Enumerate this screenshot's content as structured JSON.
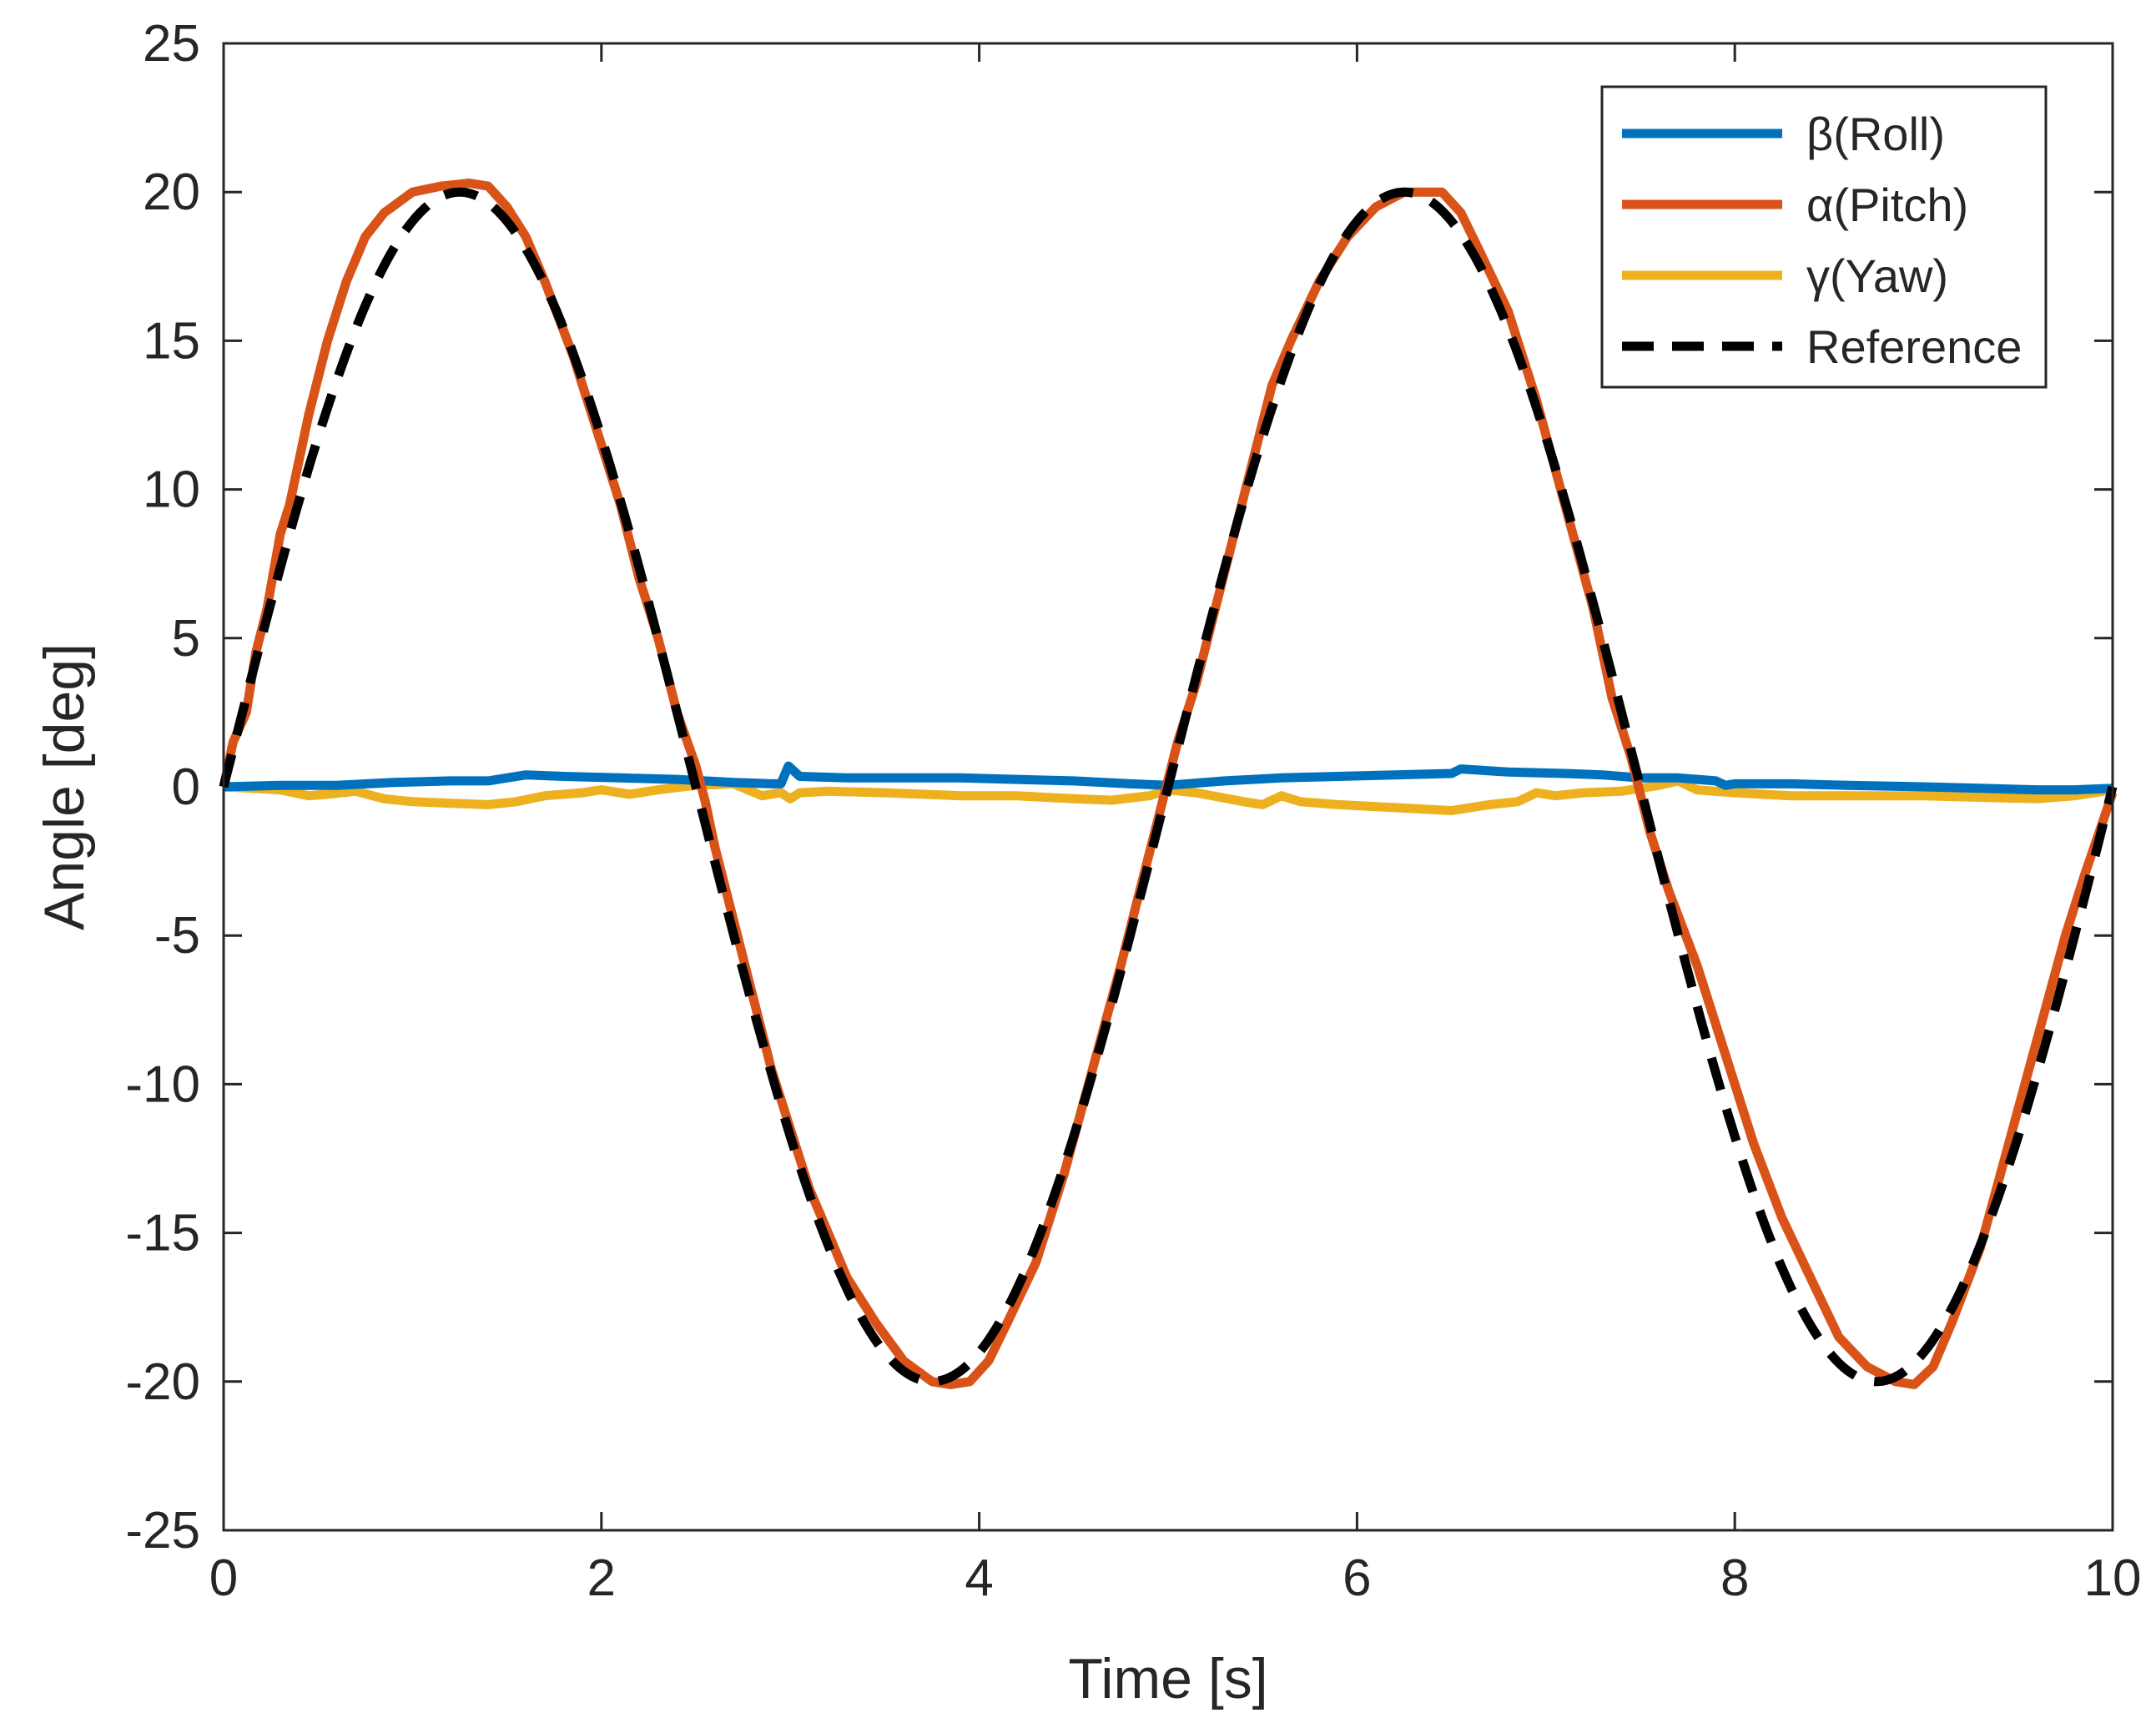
{
  "chart_data": {
    "type": "line",
    "title": "",
    "xlabel": "Time [s]",
    "ylabel": "Angle [deg]",
    "xlim": [
      0,
      10
    ],
    "ylim": [
      -25,
      25
    ],
    "xticks": [
      0,
      2,
      4,
      6,
      8,
      10
    ],
    "yticks": [
      -25,
      -20,
      -15,
      -10,
      -5,
      0,
      5,
      10,
      15,
      20,
      25
    ],
    "grid": false,
    "legend_position": "top-right",
    "series": [
      {
        "name": "β(Roll)",
        "color": "#0072BD",
        "style": "solid",
        "points": [
          [
            0,
            0
          ],
          [
            0.3,
            0.05
          ],
          [
            0.6,
            0.05
          ],
          [
            0.9,
            0.15
          ],
          [
            1.2,
            0.2
          ],
          [
            1.4,
            0.2
          ],
          [
            1.5,
            0.3
          ],
          [
            1.6,
            0.4
          ],
          [
            1.8,
            0.35
          ],
          [
            2.1,
            0.3
          ],
          [
            2.4,
            0.25
          ],
          [
            2.7,
            0.15
          ],
          [
            2.9,
            0.1
          ],
          [
            2.95,
            0.1
          ],
          [
            2.99,
            0.7
          ],
          [
            3.05,
            0.35
          ],
          [
            3.3,
            0.3
          ],
          [
            3.6,
            0.3
          ],
          [
            3.9,
            0.3
          ],
          [
            4.2,
            0.25
          ],
          [
            4.5,
            0.2
          ],
          [
            4.8,
            0.1
          ],
          [
            5.0,
            0.05
          ],
          [
            5.3,
            0.2
          ],
          [
            5.6,
            0.3
          ],
          [
            5.9,
            0.35
          ],
          [
            6.2,
            0.4
          ],
          [
            6.5,
            0.45
          ],
          [
            6.55,
            0.6
          ],
          [
            6.8,
            0.5
          ],
          [
            7.1,
            0.45
          ],
          [
            7.3,
            0.4
          ],
          [
            7.5,
            0.3
          ],
          [
            7.7,
            0.3
          ],
          [
            7.9,
            0.2
          ],
          [
            7.95,
            0.05
          ],
          [
            8.0,
            0.1
          ],
          [
            8.3,
            0.1
          ],
          [
            8.6,
            0.05
          ],
          [
            9.0,
            0
          ],
          [
            9.3,
            -0.05
          ],
          [
            9.6,
            -0.1
          ],
          [
            9.8,
            -0.1
          ],
          [
            10.0,
            -0.05
          ]
        ]
      },
      {
        "name": "α(Pitch)",
        "color": "#D95319",
        "style": "solid",
        "points": [
          [
            0,
            0
          ],
          [
            0.05,
            1.5
          ],
          [
            0.12,
            2.5
          ],
          [
            0.17,
            4.5
          ],
          [
            0.23,
            6.0
          ],
          [
            0.3,
            8.5
          ],
          [
            0.35,
            9.5
          ],
          [
            0.45,
            12.5
          ],
          [
            0.55,
            15.0
          ],
          [
            0.65,
            17.0
          ],
          [
            0.75,
            18.5
          ],
          [
            0.85,
            19.3
          ],
          [
            1.0,
            20.0
          ],
          [
            1.15,
            20.2
          ],
          [
            1.3,
            20.3
          ],
          [
            1.4,
            20.2
          ],
          [
            1.5,
            19.5
          ],
          [
            1.6,
            18.5
          ],
          [
            1.7,
            17.0
          ],
          [
            1.85,
            14.5
          ],
          [
            2.0,
            11.5
          ],
          [
            2.1,
            9.5
          ],
          [
            2.2,
            7.0
          ],
          [
            2.3,
            5.0
          ],
          [
            2.4,
            2.5
          ],
          [
            2.5,
            0.7
          ],
          [
            2.55,
            -0.5
          ],
          [
            2.6,
            -2.0
          ],
          [
            2.7,
            -4.5
          ],
          [
            2.8,
            -7.0
          ],
          [
            2.9,
            -9.5
          ],
          [
            3.0,
            -11.5
          ],
          [
            3.1,
            -13.5
          ],
          [
            3.2,
            -15.0
          ],
          [
            3.3,
            -16.5
          ],
          [
            3.45,
            -18.0
          ],
          [
            3.6,
            -19.3
          ],
          [
            3.75,
            -20.0
          ],
          [
            3.85,
            -20.1
          ],
          [
            3.95,
            -20.0
          ],
          [
            4.05,
            -19.3
          ],
          [
            4.15,
            -18.0
          ],
          [
            4.3,
            -16.0
          ],
          [
            4.45,
            -13.0
          ],
          [
            4.6,
            -9.5
          ],
          [
            4.75,
            -6.0
          ],
          [
            4.85,
            -3.5
          ],
          [
            4.95,
            -1.0
          ],
          [
            5.05,
            1.5
          ],
          [
            5.15,
            3.5
          ],
          [
            5.25,
            6.0
          ],
          [
            5.35,
            8.5
          ],
          [
            5.45,
            11.0
          ],
          [
            5.55,
            13.5
          ],
          [
            5.65,
            15.0
          ],
          [
            5.8,
            17.0
          ],
          [
            5.95,
            18.5
          ],
          [
            6.1,
            19.5
          ],
          [
            6.25,
            20.0
          ],
          [
            6.45,
            20.0
          ],
          [
            6.55,
            19.3
          ],
          [
            6.65,
            18.0
          ],
          [
            6.8,
            16.0
          ],
          [
            6.95,
            13.0
          ],
          [
            7.1,
            9.5
          ],
          [
            7.25,
            6.0
          ],
          [
            7.35,
            3.0
          ],
          [
            7.45,
            1.0
          ],
          [
            7.55,
            -1.5
          ],
          [
            7.65,
            -3.5
          ],
          [
            7.8,
            -6.0
          ],
          [
            7.95,
            -9.0
          ],
          [
            8.1,
            -12.0
          ],
          [
            8.25,
            -14.5
          ],
          [
            8.4,
            -16.5
          ],
          [
            8.55,
            -18.5
          ],
          [
            8.7,
            -19.5
          ],
          [
            8.85,
            -20.0
          ],
          [
            8.95,
            -20.1
          ],
          [
            9.05,
            -19.5
          ],
          [
            9.15,
            -18.0
          ],
          [
            9.3,
            -15.5
          ],
          [
            9.45,
            -12.0
          ],
          [
            9.6,
            -8.5
          ],
          [
            9.75,
            -5.0
          ],
          [
            9.85,
            -3.0
          ],
          [
            10.0,
            -0.2
          ]
        ]
      },
      {
        "name": "γ(Yaw)",
        "color": "#EDB120",
        "style": "solid",
        "points": [
          [
            0,
            0
          ],
          [
            0.15,
            -0.05
          ],
          [
            0.3,
            -0.1
          ],
          [
            0.45,
            -0.3
          ],
          [
            0.55,
            -0.25
          ],
          [
            0.7,
            -0.15
          ],
          [
            0.85,
            -0.4
          ],
          [
            1.0,
            -0.5
          ],
          [
            1.2,
            -0.55
          ],
          [
            1.4,
            -0.6
          ],
          [
            1.55,
            -0.5
          ],
          [
            1.7,
            -0.3
          ],
          [
            1.9,
            -0.2
          ],
          [
            2.0,
            -0.1
          ],
          [
            2.15,
            -0.25
          ],
          [
            2.3,
            -0.1
          ],
          [
            2.5,
            0.05
          ],
          [
            2.7,
            0.1
          ],
          [
            2.85,
            -0.3
          ],
          [
            2.95,
            -0.2
          ],
          [
            3.0,
            -0.4
          ],
          [
            3.05,
            -0.2
          ],
          [
            3.2,
            -0.15
          ],
          [
            3.5,
            -0.2
          ],
          [
            3.9,
            -0.3
          ],
          [
            4.2,
            -0.3
          ],
          [
            4.5,
            -0.4
          ],
          [
            4.7,
            -0.45
          ],
          [
            4.9,
            -0.3
          ],
          [
            5.0,
            -0.1
          ],
          [
            5.15,
            -0.2
          ],
          [
            5.4,
            -0.5
          ],
          [
            5.5,
            -0.6
          ],
          [
            5.6,
            -0.3
          ],
          [
            5.7,
            -0.5
          ],
          [
            5.9,
            -0.6
          ],
          [
            6.2,
            -0.7
          ],
          [
            6.5,
            -0.8
          ],
          [
            6.7,
            -0.6
          ],
          [
            6.85,
            -0.5
          ],
          [
            6.95,
            -0.2
          ],
          [
            7.05,
            -0.3
          ],
          [
            7.2,
            -0.2
          ],
          [
            7.4,
            -0.15
          ],
          [
            7.6,
            0.05
          ],
          [
            7.7,
            0.2
          ],
          [
            7.8,
            -0.1
          ],
          [
            8.0,
            -0.2
          ],
          [
            8.3,
            -0.3
          ],
          [
            8.7,
            -0.3
          ],
          [
            9.0,
            -0.3
          ],
          [
            9.3,
            -0.35
          ],
          [
            9.6,
            -0.4
          ],
          [
            9.8,
            -0.3
          ],
          [
            10.0,
            -0.1
          ]
        ]
      },
      {
        "name": "Reference",
        "color": "#000000",
        "style": "dashed",
        "function": "20*sin(2*pi*t/5)"
      }
    ]
  }
}
